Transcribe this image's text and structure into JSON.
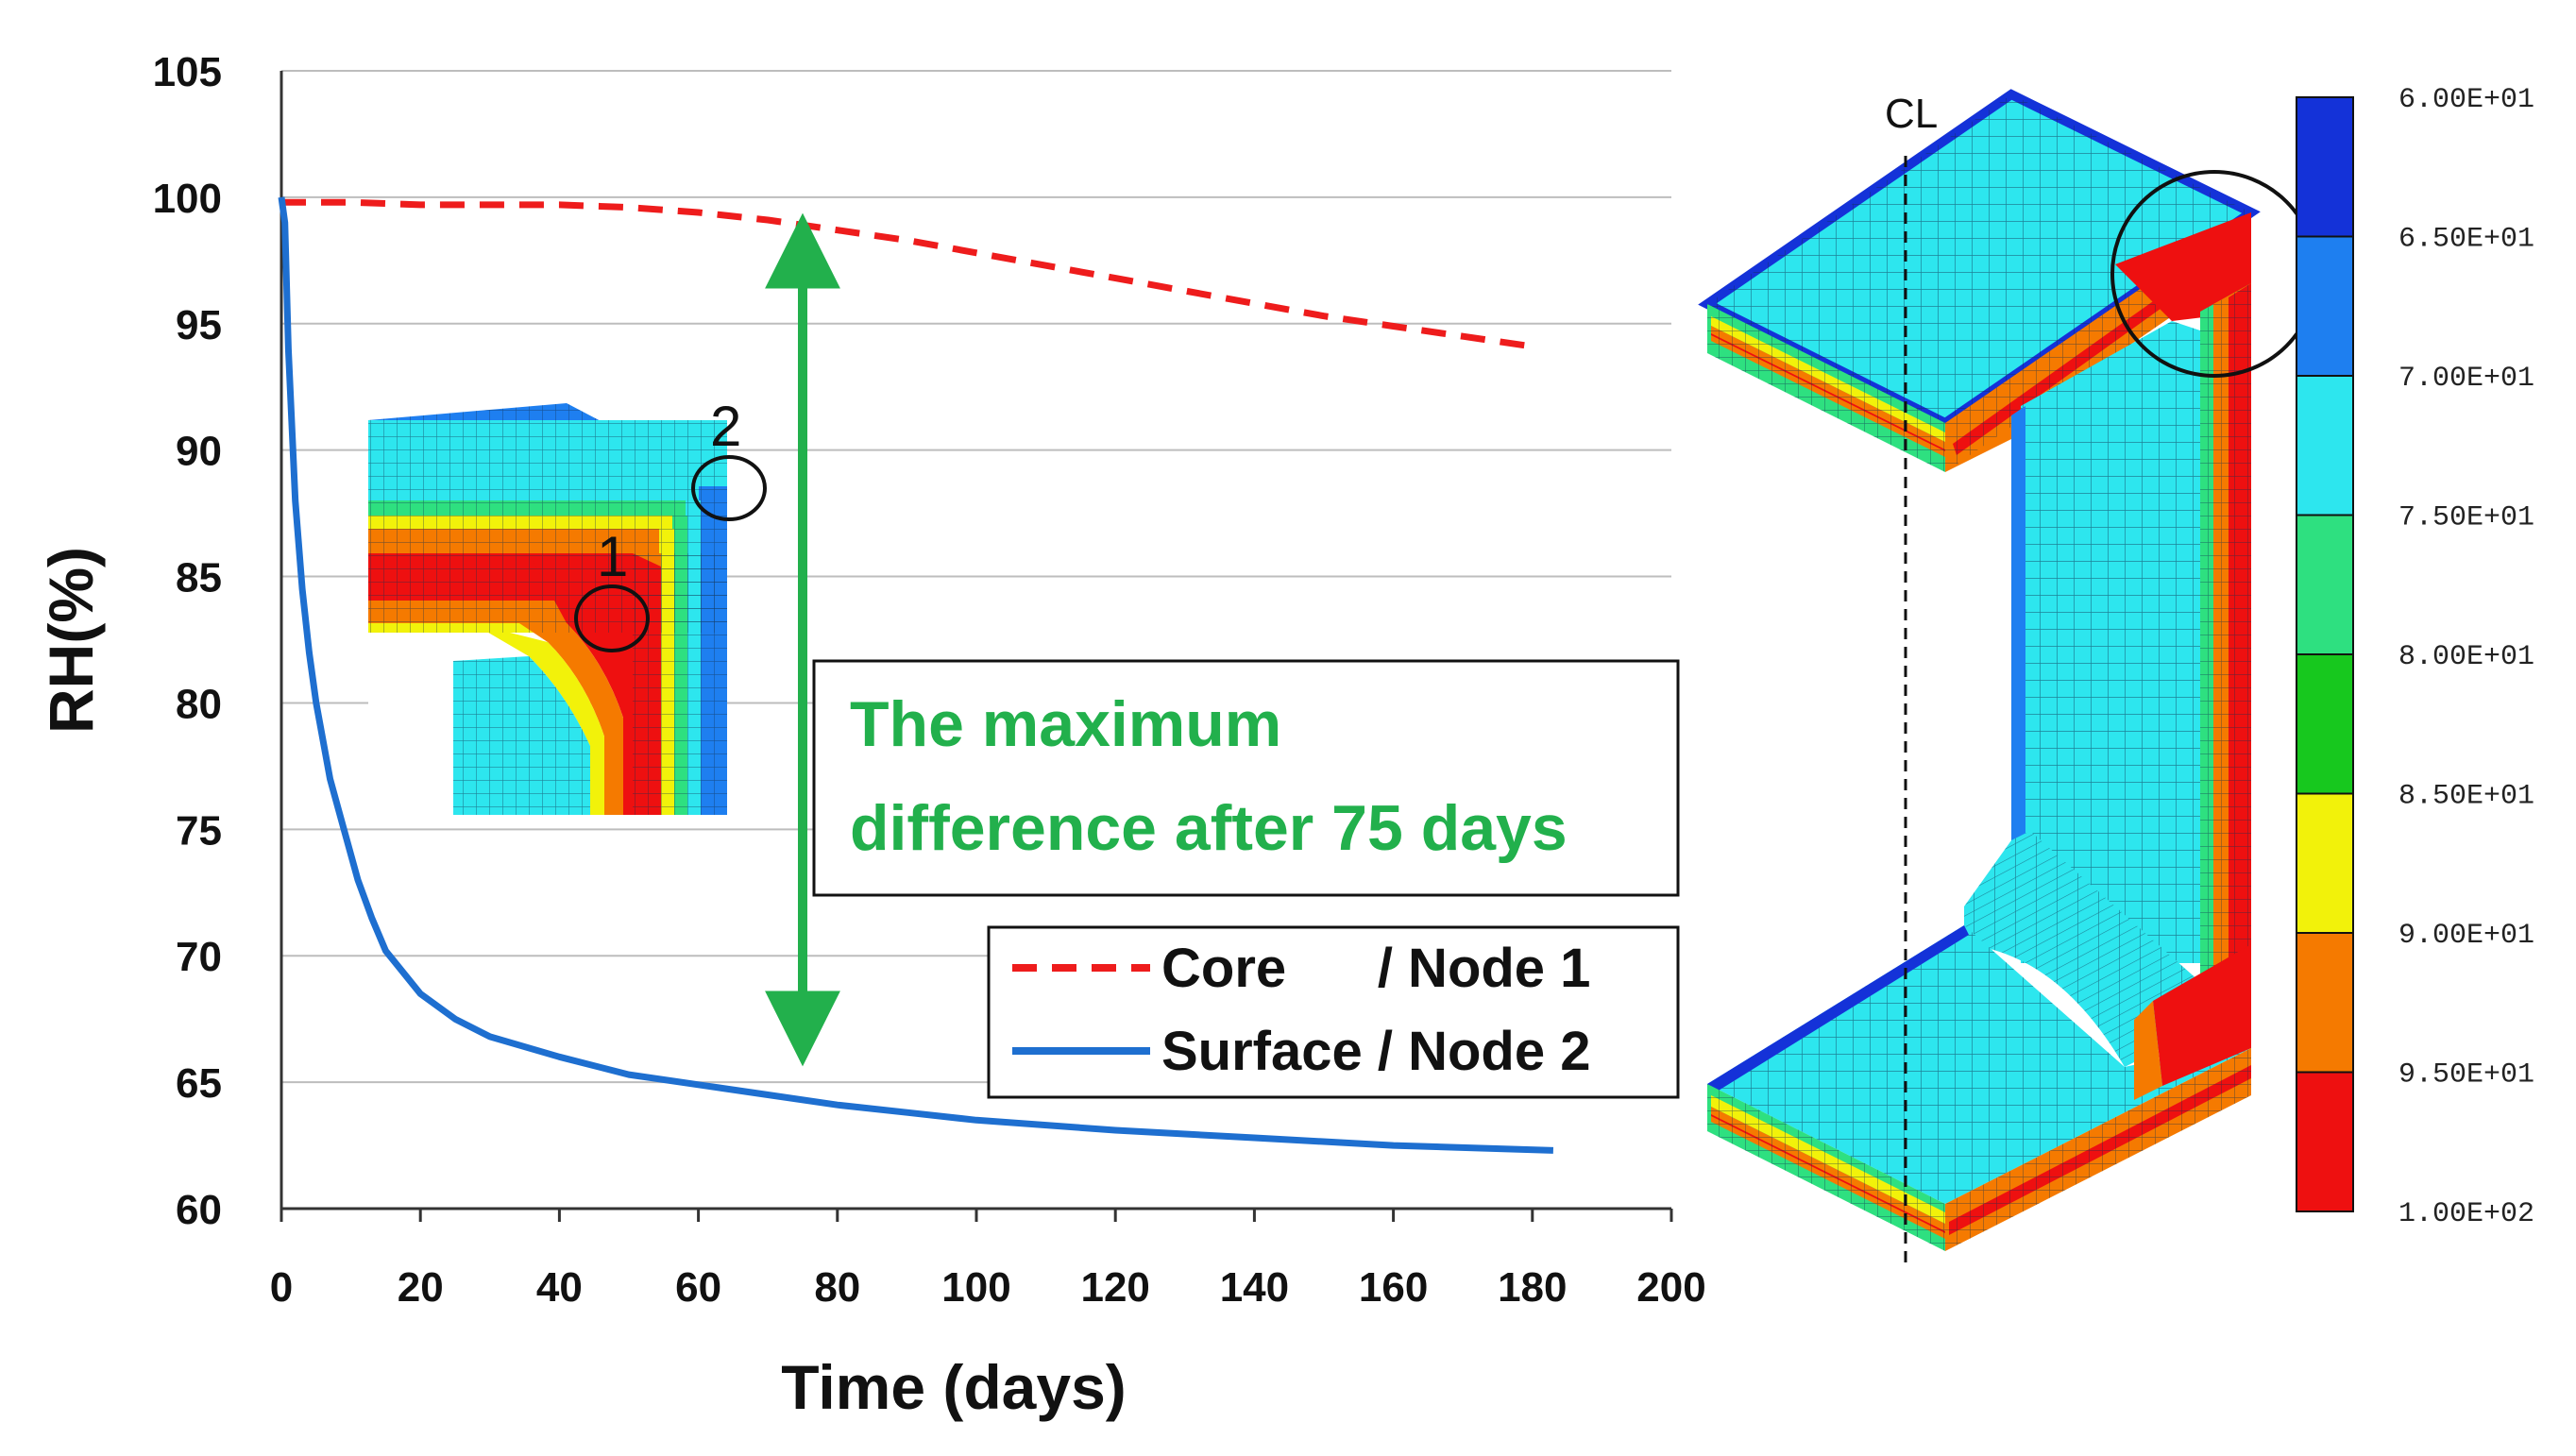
{
  "chart_data": {
    "type": "line",
    "xlabel": "Time (days)",
    "ylabel": "RH(%)",
    "xlim": [
      0,
      200
    ],
    "ylim": [
      60,
      105
    ],
    "x_ticks": [
      0,
      20,
      40,
      60,
      80,
      100,
      120,
      140,
      160,
      180,
      200
    ],
    "y_ticks": [
      60,
      65,
      70,
      75,
      80,
      85,
      90,
      95,
      100,
      105
    ],
    "grid": true,
    "legend_position": "lower-right",
    "series": [
      {
        "name": "Core      / Node 1",
        "color": "#ee1c1c",
        "style": "dashed",
        "x": [
          0,
          10,
          20,
          30,
          40,
          50,
          60,
          70,
          80,
          90,
          100,
          110,
          120,
          130,
          140,
          150,
          160,
          170,
          180
        ],
        "y": [
          99.8,
          99.8,
          99.7,
          99.7,
          99.7,
          99.6,
          99.4,
          99.1,
          98.7,
          98.3,
          97.8,
          97.3,
          96.8,
          96.3,
          95.8,
          95.3,
          94.9,
          94.5,
          94.1
        ]
      },
      {
        "name": "Surface / Node 2",
        "color": "#1e6fd0",
        "style": "solid",
        "x": [
          0,
          0.5,
          1,
          2,
          3,
          4,
          5,
          7,
          9,
          11,
          13,
          15,
          20,
          25,
          30,
          40,
          50,
          60,
          70,
          80,
          90,
          100,
          120,
          140,
          160,
          183
        ],
        "y": [
          100,
          99,
          94,
          88,
          84.5,
          82,
          80,
          77,
          75,
          73,
          71.5,
          70.2,
          68.5,
          67.5,
          66.8,
          66,
          65.3,
          64.9,
          64.5,
          64.1,
          63.8,
          63.5,
          63.1,
          62.8,
          62.5,
          62.3
        ]
      }
    ],
    "annotation": {
      "line1": "The maximum",
      "line2": "difference after 75 days",
      "arrow_x": 75,
      "arrow_y_top": 99,
      "arrow_y_bottom": 66,
      "color": "#22b04c"
    }
  },
  "inset": {
    "node1_label": "1",
    "node2_label": "2"
  },
  "model": {
    "centerline_label": "CL"
  },
  "colorbar": {
    "labels": [
      "6.00E+01",
      "6.50E+01",
      "7.00E+01",
      "7.50E+01",
      "8.00E+01",
      "8.50E+01",
      "9.00E+01",
      "9.50E+01",
      "1.00E+02"
    ],
    "colors": [
      "#1432d8",
      "#1e7ff0",
      "#2de6ee",
      "#2ee080",
      "#17c81e",
      "#f2f20a",
      "#f57a00",
      "#ee1010"
    ]
  }
}
